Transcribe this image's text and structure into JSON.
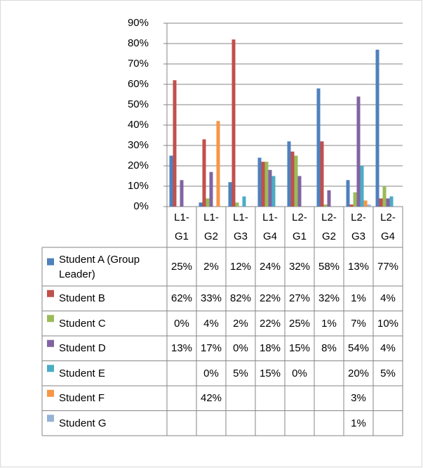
{
  "chart_data": {
    "type": "bar",
    "categories": [
      "L1-G1",
      "L1-G2",
      "L1-G3",
      "L1-G4",
      "L2-G1",
      "L2-G2",
      "L2-G3",
      "L2-G4"
    ],
    "series": [
      {
        "name": "Student A (Group Leader)",
        "color": "#4f81bd",
        "values": [
          25,
          2,
          12,
          24,
          32,
          58,
          13,
          77
        ],
        "value_labels": [
          "25%",
          "2%",
          "12%",
          "24%",
          "32%",
          "58%",
          "13%",
          "77%"
        ]
      },
      {
        "name": "Student B",
        "color": "#c0504d",
        "values": [
          62,
          33,
          82,
          22,
          27,
          32,
          1,
          4
        ],
        "value_labels": [
          "62%",
          "33%",
          "82%",
          "22%",
          "27%",
          "32%",
          "1%",
          "4%"
        ]
      },
      {
        "name": "Student C",
        "color": "#9bbb59",
        "values": [
          0,
          4,
          2,
          22,
          25,
          1,
          7,
          10
        ],
        "value_labels": [
          "0%",
          "4%",
          "2%",
          "22%",
          "25%",
          "1%",
          "7%",
          "10%"
        ]
      },
      {
        "name": "Student D",
        "color": "#8064a2",
        "values": [
          13,
          17,
          0,
          18,
          15,
          8,
          54,
          4
        ],
        "value_labels": [
          "13%",
          "17%",
          "0%",
          "18%",
          "15%",
          "8%",
          "54%",
          "4%"
        ]
      },
      {
        "name": "Student E",
        "color": "#4bacc6",
        "values": [
          null,
          0,
          5,
          15,
          0,
          null,
          20,
          5
        ],
        "value_labels": [
          null,
          "0%",
          "5%",
          "15%",
          "0%",
          null,
          "20%",
          "5%"
        ]
      },
      {
        "name": "Student F",
        "color": "#f79646",
        "values": [
          null,
          42,
          null,
          null,
          null,
          null,
          3,
          null
        ],
        "value_labels": [
          null,
          "42%",
          null,
          null,
          null,
          null,
          "3%",
          null
        ]
      },
      {
        "name": "Student G",
        "color": "#95b3d7",
        "values": [
          null,
          null,
          null,
          null,
          null,
          null,
          1,
          null
        ],
        "value_labels": [
          null,
          null,
          null,
          null,
          null,
          null,
          "1%",
          null
        ]
      }
    ],
    "ylim": [
      0,
      90
    ],
    "yticks": [
      {
        "value": 0,
        "label": "0%"
      },
      {
        "value": 10,
        "label": "10%"
      },
      {
        "value": 20,
        "label": "20%"
      },
      {
        "value": 30,
        "label": "30%"
      },
      {
        "value": 40,
        "label": "40%"
      },
      {
        "value": 50,
        "label": "50%"
      },
      {
        "value": 60,
        "label": "60%"
      },
      {
        "value": 70,
        "label": "70%"
      },
      {
        "value": 80,
        "label": "80%"
      },
      {
        "value": 90,
        "label": "90%"
      }
    ],
    "grid": true
  }
}
